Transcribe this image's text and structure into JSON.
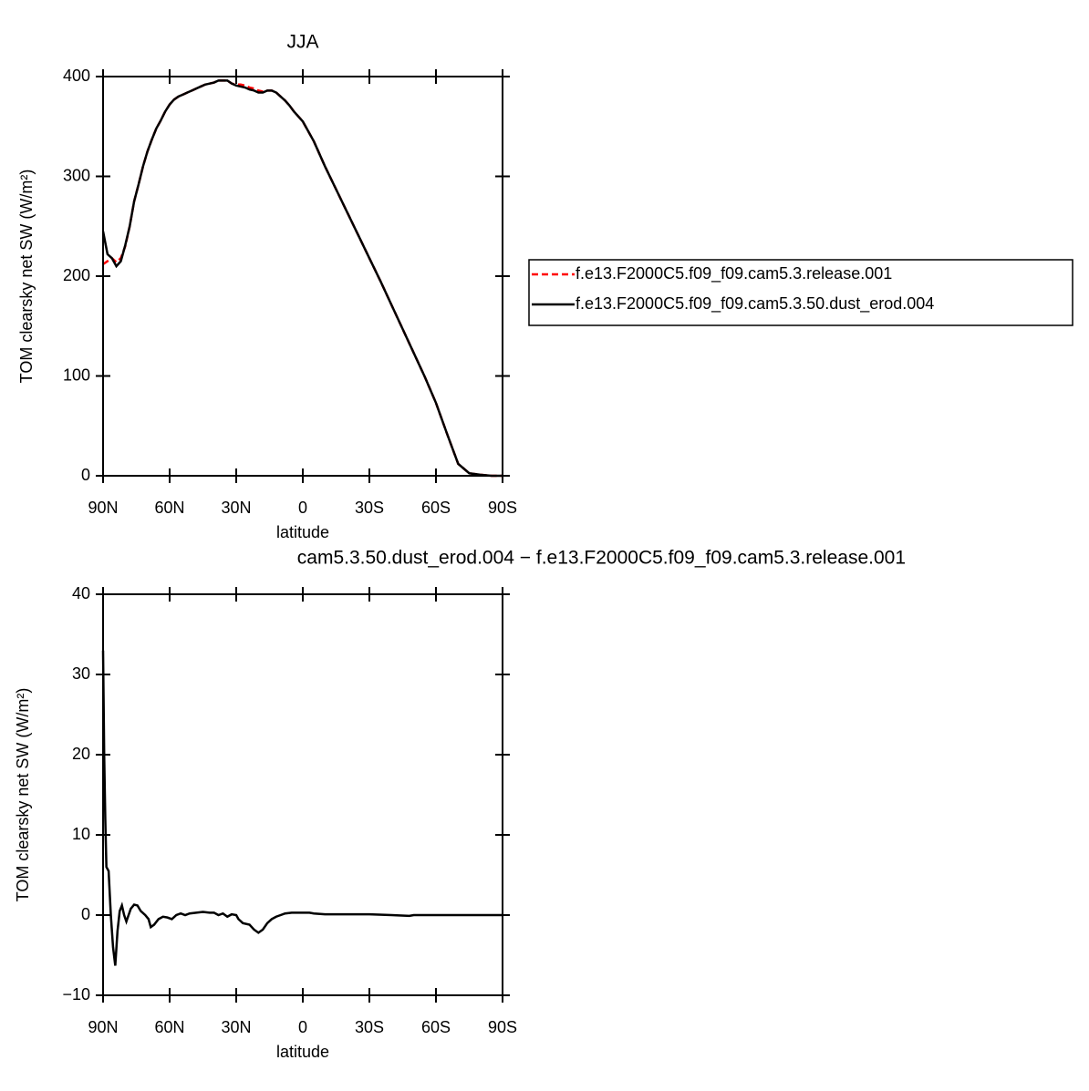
{
  "chart_data": [
    {
      "type": "line",
      "title": "JJA",
      "ylabel": "TOM clearsky net SW (W/m²)",
      "xlabel": "latitude",
      "x": [
        90,
        88,
        86,
        84,
        82,
        80,
        78,
        76,
        74,
        72,
        70,
        68,
        66,
        64,
        62,
        60,
        58,
        56,
        54,
        52,
        50,
        48,
        46,
        44,
        42,
        40,
        38,
        36,
        34,
        32,
        30,
        28,
        26,
        24,
        22,
        20,
        18,
        16,
        14,
        12,
        10,
        8,
        6,
        4,
        2,
        0,
        -5,
        -10,
        -15,
        -20,
        -25,
        -30,
        -35,
        -40,
        -45,
        -50,
        -55,
        -60,
        -65,
        -70,
        -75,
        -80,
        -85,
        -90
      ],
      "series": [
        {
          "name": "f.e13.F2000C5.f09_f09.cam5.3.release.001",
          "color": "#ff0000",
          "dash": true,
          "values": [
            212,
            215,
            218,
            214,
            218,
            230,
            250,
            275,
            292,
            310,
            325,
            337,
            348,
            356,
            365,
            372,
            377,
            380,
            382,
            384,
            386,
            388,
            390,
            392,
            393,
            394,
            396,
            396,
            396,
            393,
            392,
            392,
            391,
            389,
            388,
            386,
            385,
            386,
            386,
            384,
            380,
            376,
            371,
            365,
            360,
            355,
            335,
            310,
            287,
            264,
            241,
            218,
            195,
            171,
            147,
            123,
            99,
            73,
            42,
            12,
            2.5,
            1,
            0,
            0
          ]
        },
        {
          "name": "f.e13.F2000C5.f09_f09.cam5.3.50.dust_erod.004",
          "color": "#000000",
          "dash": false,
          "values": [
            245,
            222,
            218,
            210,
            215,
            231,
            250,
            275,
            292,
            310,
            325,
            337,
            348,
            356,
            365,
            372,
            377,
            380,
            382,
            384,
            386,
            388,
            390,
            392,
            393,
            394,
            396,
            396,
            396,
            393,
            391,
            390,
            389,
            387,
            386,
            384,
            384,
            386,
            386,
            384,
            380,
            376,
            371,
            365,
            360,
            355,
            335,
            310,
            287,
            264,
            241,
            218,
            195,
            171,
            147,
            123,
            99,
            73,
            42,
            12,
            2.5,
            1,
            0,
            0
          ]
        }
      ],
      "xlim": [
        90,
        -90
      ],
      "xticks": [
        {
          "value": 90,
          "label": "90N"
        },
        {
          "value": 60,
          "label": "60N"
        },
        {
          "value": 30,
          "label": "30N"
        },
        0,
        {
          "value": -30,
          "label": "30S"
        },
        {
          "value": -60,
          "label": "60S"
        },
        {
          "value": -90,
          "label": "90S"
        }
      ],
      "ylim": [
        0,
        400
      ],
      "yticks": [
        0,
        100,
        200,
        300,
        400
      ],
      "legend": "right"
    },
    {
      "type": "line",
      "title": "cam5.3.50.dust_erod.004 − f.e13.F2000C5.f09_f09.cam5.3.release.001",
      "ylabel": "TOM clearsky net SW (W/m²)",
      "xlabel": "latitude",
      "x": [
        90,
        89.5,
        89,
        88.5,
        87.5,
        86.5,
        85.5,
        84.5,
        83.5,
        82.5,
        81.5,
        80.5,
        79.5,
        78.5,
        77.5,
        76,
        74.5,
        73,
        71,
        69.5,
        68.5,
        67,
        65,
        63,
        61,
        59,
        57,
        55,
        53,
        51,
        48,
        45,
        42,
        40,
        38,
        36,
        34,
        32,
        30,
        29,
        27,
        24,
        22,
        20,
        18,
        16,
        14,
        12,
        10,
        8,
        5,
        0,
        -3,
        -5,
        -10,
        -20,
        -30,
        -40,
        -48,
        -50,
        -60,
        -70,
        -80,
        -90
      ],
      "series": [
        {
          "color": "#000000",
          "dash": false,
          "values": [
            33,
            20,
            12,
            6,
            5.5,
            0,
            -4,
            -6.3,
            -2,
            0.5,
            1.2,
            0,
            -0.8,
            0,
            0.8,
            1.3,
            1.2,
            0.5,
            0,
            -0.5,
            -1.5,
            -1.2,
            -0.5,
            -0.2,
            -0.3,
            -0.5,
            0,
            0.2,
            0,
            0.2,
            0.3,
            0.4,
            0.3,
            0.3,
            0,
            0.2,
            -0.2,
            0.1,
            0,
            -0.5,
            -1,
            -1.2,
            -1.8,
            -2.2,
            -1.8,
            -1,
            -0.5,
            -0.2,
            0,
            0.2,
            0.3,
            0.3,
            0.3,
            0.2,
            0.1,
            0.1,
            0.1,
            0,
            -0.1,
            0,
            0,
            0,
            0,
            0
          ]
        }
      ],
      "xlim": [
        90,
        -90
      ],
      "xticks": [
        {
          "value": 90,
          "label": "90N"
        },
        {
          "value": 60,
          "label": "60N"
        },
        {
          "value": 30,
          "label": "30N"
        },
        0,
        {
          "value": -30,
          "label": "30S"
        },
        {
          "value": -60,
          "label": "60S"
        },
        {
          "value": -90,
          "label": "90S"
        }
      ],
      "ylim": [
        -10,
        40
      ],
      "yticks": [
        {
          "value": -10,
          "label": "−10"
        },
        0,
        10,
        20,
        30,
        40
      ]
    }
  ]
}
